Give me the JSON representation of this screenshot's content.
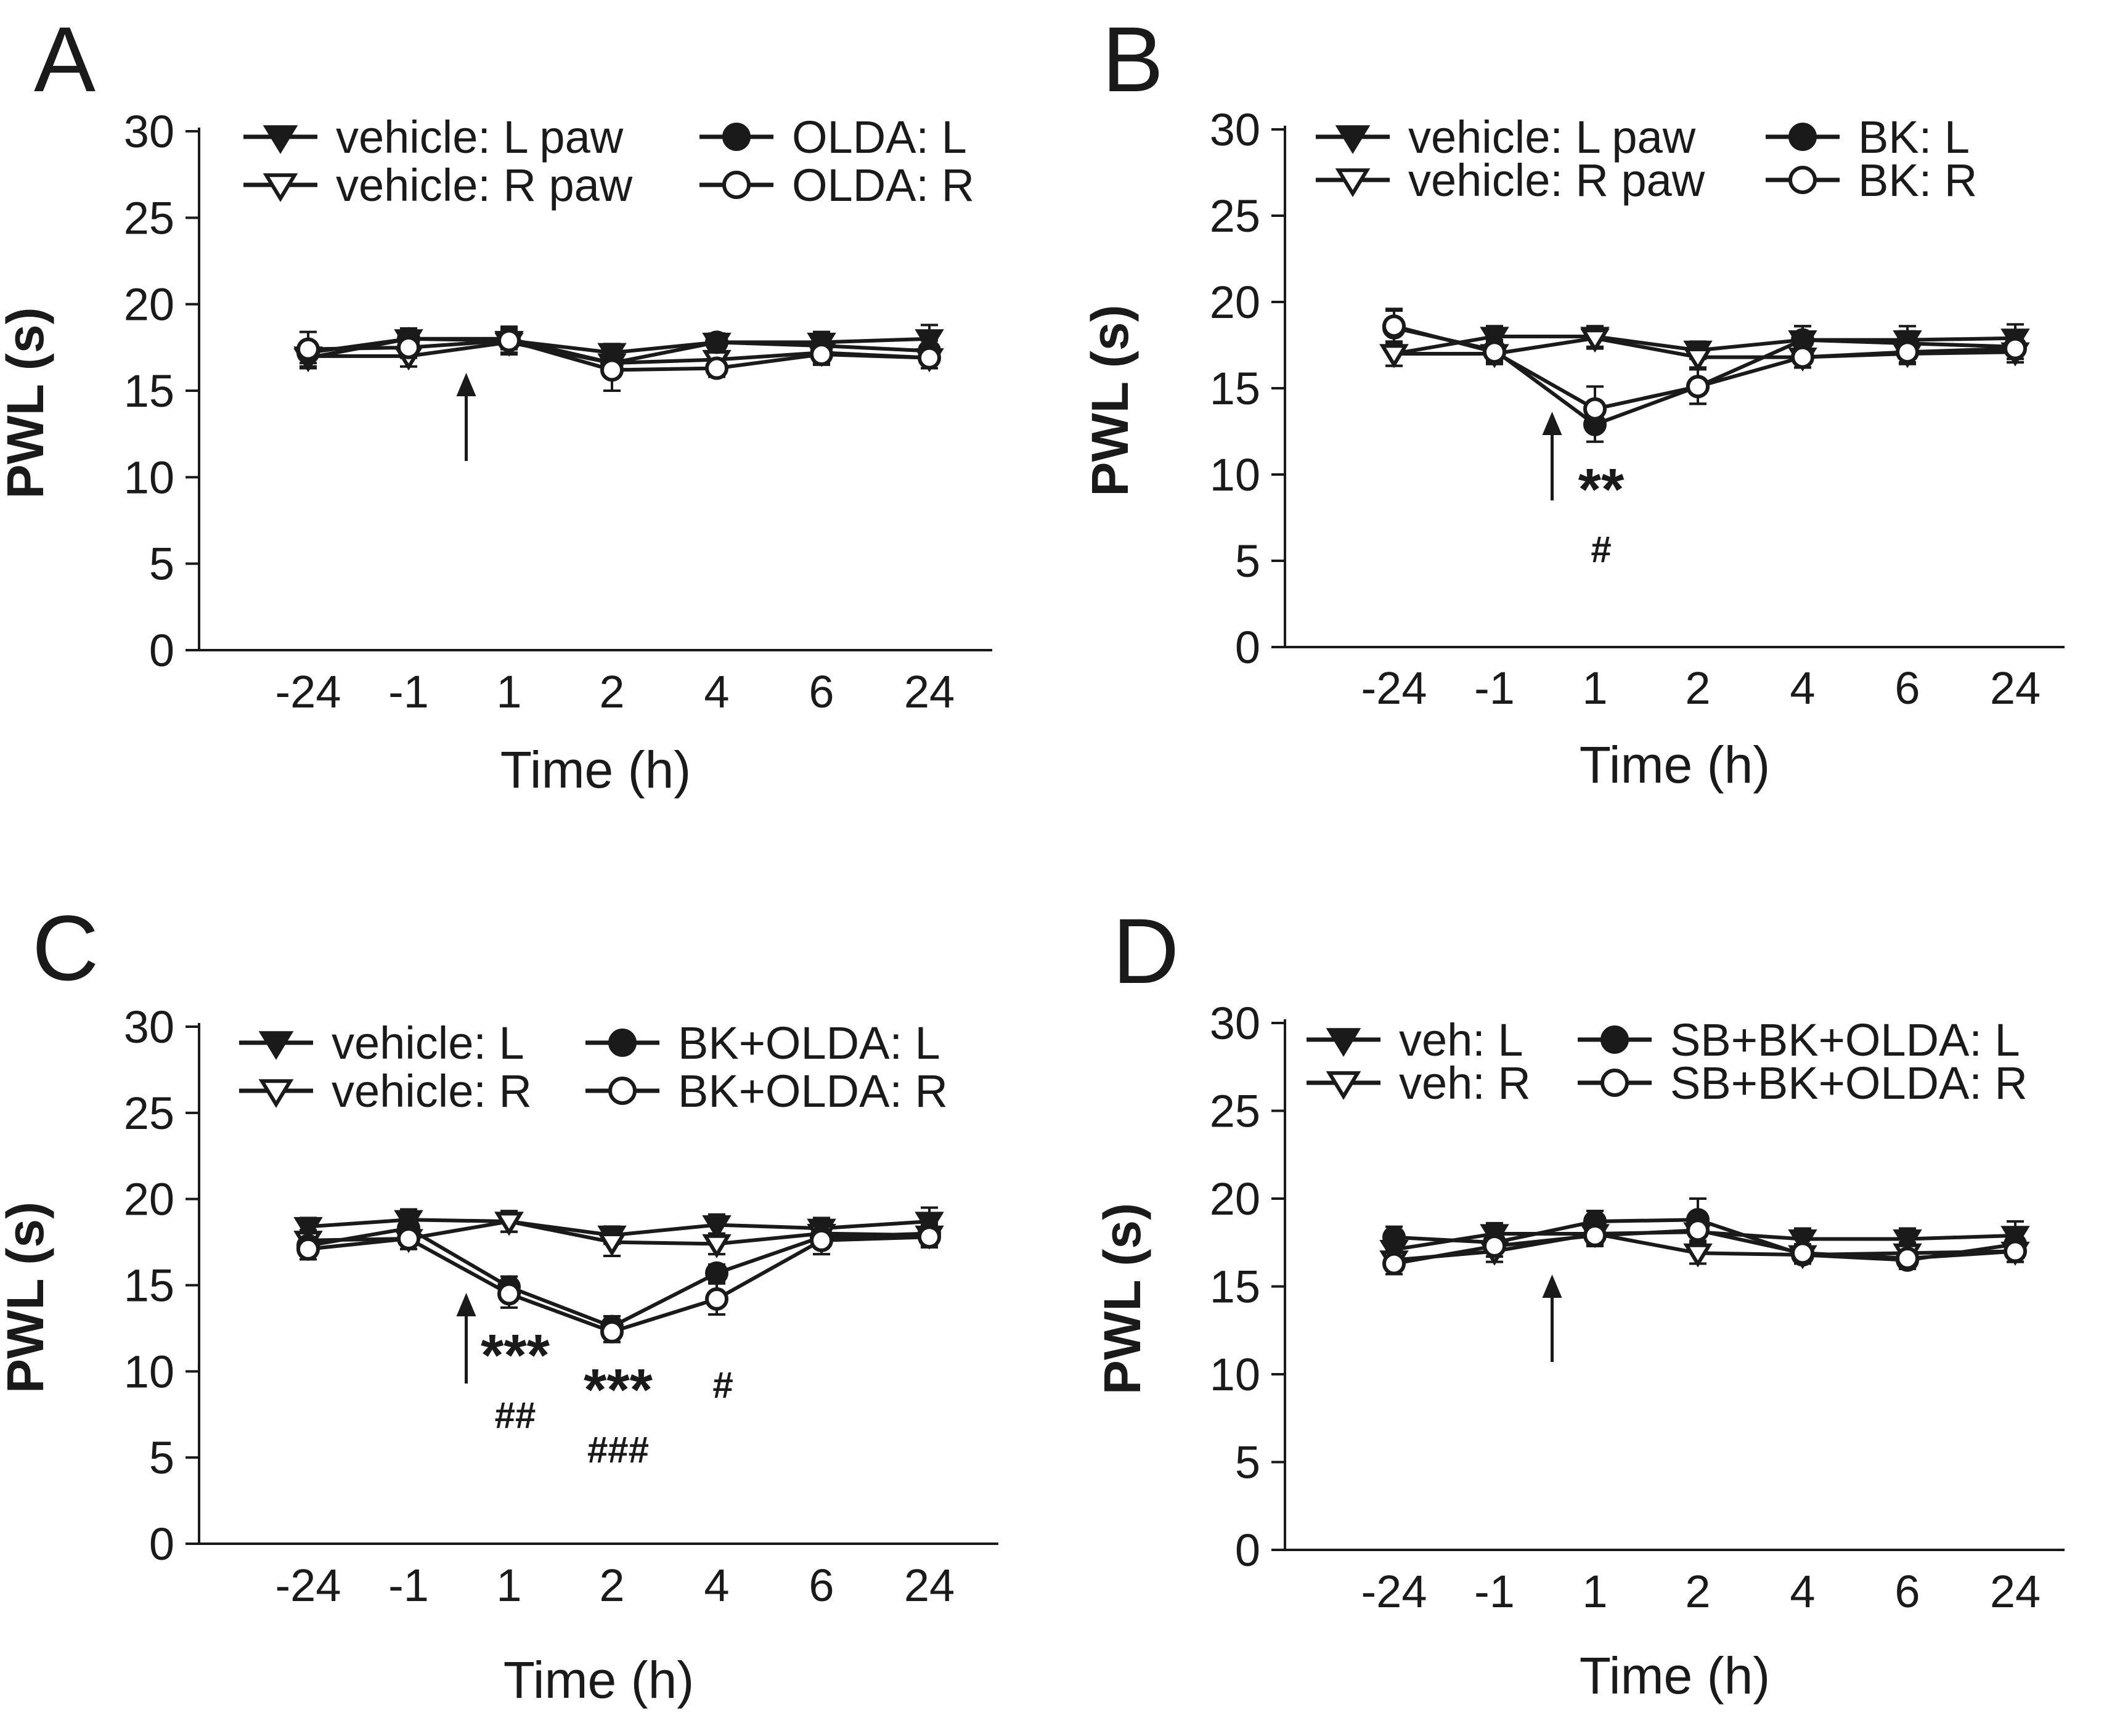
{
  "figure": {
    "colors": {
      "ink": "#1a1a1a",
      "fill_open": "#ffffff",
      "background": "#ffffff"
    }
  },
  "chart_data": [
    {
      "panel": "A",
      "type": "line",
      "ylabel": "PWL (s)",
      "xlabel": "Time (h)",
      "categories": [
        "-24",
        "-1",
        "1",
        "2",
        "4",
        "6",
        "24"
      ],
      "ylim": [
        0,
        30
      ],
      "yticks": [
        "0",
        "5",
        "10",
        "15",
        "20",
        "25",
        "30"
      ],
      "injection_arrow_between": [
        "-1",
        "1"
      ],
      "legend": {
        "left": [
          {
            "label": "vehicle: L paw",
            "marker": "triangle-down-filled"
          },
          {
            "label": "vehicle: R paw",
            "marker": "triangle-down-open"
          }
        ],
        "right": [
          {
            "label": "OLDA: L",
            "marker": "circle-filled"
          },
          {
            "label": "OLDA: R",
            "marker": "circle-open"
          }
        ]
      },
      "series": [
        {
          "name": "vehicle: L paw",
          "marker": "triangle-down-filled",
          "values": [
            16.9,
            18.0,
            17.9,
            17.2,
            17.8,
            17.8,
            18.0
          ],
          "errors": [
            0.6,
            0.6,
            0.7,
            0.5,
            0.5,
            0.6,
            0.8
          ]
        },
        {
          "name": "vehicle: R paw",
          "marker": "triangle-down-open",
          "values": [
            17.0,
            17.0,
            17.8,
            16.6,
            16.8,
            17.2,
            16.9
          ],
          "errors": [
            0.6,
            0.6,
            0.7,
            0.6,
            0.5,
            0.6,
            0.6
          ]
        },
        {
          "name": "OLDA: L",
          "marker": "circle-filled",
          "values": [
            17.2,
            18.0,
            18.0,
            16.6,
            17.8,
            17.6,
            17.3
          ],
          "errors": [
            0.6,
            0.6,
            0.6,
            0.6,
            0.5,
            0.6,
            0.6
          ]
        },
        {
          "name": "OLDA: R",
          "marker": "circle-open",
          "values": [
            17.4,
            17.5,
            17.9,
            16.2,
            16.3,
            17.1,
            16.9
          ],
          "errors": [
            1.0,
            0.6,
            0.8,
            1.2,
            0.5,
            0.6,
            0.6
          ]
        }
      ],
      "annotations": []
    },
    {
      "panel": "B",
      "type": "line",
      "ylabel": "PWL (s)",
      "xlabel": "Time (h)",
      "categories": [
        "-24",
        "-1",
        "1",
        "2",
        "4",
        "6",
        "24"
      ],
      "ylim": [
        0,
        30
      ],
      "yticks": [
        "0",
        "5",
        "10",
        "15",
        "20",
        "25",
        "30"
      ],
      "injection_arrow_between": [
        "-1",
        "1"
      ],
      "legend": {
        "left": [
          {
            "label": "vehicle: L paw",
            "marker": "triangle-down-filled"
          },
          {
            "label": "vehicle: R paw",
            "marker": "triangle-down-open"
          }
        ],
        "right": [
          {
            "label": "BK: L",
            "marker": "circle-filled"
          },
          {
            "label": "BK: R",
            "marker": "circle-open"
          }
        ]
      },
      "series": [
        {
          "name": "vehicle: L paw",
          "marker": "triangle-down-filled",
          "values": [
            17.0,
            18.0,
            18.0,
            17.2,
            17.8,
            17.8,
            17.9
          ],
          "errors": [
            0.7,
            0.6,
            0.6,
            0.5,
            0.8,
            0.8,
            0.8
          ]
        },
        {
          "name": "vehicle: R paw",
          "marker": "triangle-down-open",
          "values": [
            17.0,
            17.0,
            17.9,
            16.8,
            16.8,
            17.0,
            17.1
          ],
          "errors": [
            0.7,
            0.6,
            0.6,
            0.6,
            0.6,
            0.6,
            0.6
          ]
        },
        {
          "name": "BK: L",
          "marker": "circle-filled",
          "values": [
            18.5,
            17.2,
            12.9,
            15.1,
            17.8,
            17.6,
            17.4
          ],
          "errors": [
            1.0,
            0.6,
            1.0,
            1.0,
            0.8,
            0.7,
            0.7
          ]
        },
        {
          "name": "BK: R",
          "marker": "circle-open",
          "values": [
            18.6,
            17.1,
            13.8,
            15.1,
            16.8,
            17.1,
            17.3
          ],
          "errors": [
            1.0,
            0.6,
            1.3,
            1.0,
            0.6,
            0.6,
            0.6
          ]
        }
      ],
      "annotations": [
        {
          "at": "1",
          "text": "**",
          "weight": "bold",
          "tone": "gray",
          "level": 1
        },
        {
          "at": "1",
          "text": "#",
          "weight": "bold",
          "tone": "gray",
          "level": 2
        }
      ]
    },
    {
      "panel": "C",
      "type": "line",
      "ylabel": "PWL (s)",
      "xlabel": "Time (h)",
      "categories": [
        "-24",
        "-1",
        "1",
        "2",
        "4",
        "6",
        "24"
      ],
      "ylim": [
        0,
        30
      ],
      "yticks": [
        "0",
        "5",
        "10",
        "15",
        "20",
        "25",
        "30"
      ],
      "injection_arrow_between": [
        "-1",
        "1"
      ],
      "legend": {
        "left": [
          {
            "label": "vehicle: L",
            "marker": "triangle-down-filled"
          },
          {
            "label": "vehicle: R",
            "marker": "triangle-down-open"
          }
        ],
        "right": [
          {
            "label": "BK+OLDA: L",
            "marker": "circle-filled"
          },
          {
            "label": "BK+OLDA: R",
            "marker": "circle-open"
          }
        ]
      },
      "series": [
        {
          "name": "vehicle: L",
          "marker": "triangle-down-filled",
          "values": [
            18.4,
            18.8,
            18.7,
            17.9,
            18.5,
            18.3,
            18.7
          ],
          "errors": [
            0.5,
            0.6,
            0.6,
            0.5,
            0.6,
            0.6,
            0.8
          ]
        },
        {
          "name": "vehicle: R",
          "marker": "triangle-down-open",
          "values": [
            17.6,
            17.7,
            18.7,
            17.5,
            17.4,
            18.0,
            17.9
          ],
          "errors": [
            0.6,
            0.6,
            0.6,
            0.8,
            0.6,
            0.6,
            0.6
          ]
        },
        {
          "name": "BK+OLDA: L",
          "marker": "circle-filled",
          "values": [
            17.3,
            18.3,
            14.9,
            12.6,
            15.7,
            17.8,
            18.0
          ],
          "errors": [
            0.6,
            0.6,
            0.6,
            0.6,
            0.5,
            0.6,
            0.6
          ]
        },
        {
          "name": "BK+OLDA: R",
          "marker": "circle-open",
          "values": [
            17.1,
            17.7,
            14.5,
            12.3,
            14.2,
            17.6,
            17.8
          ],
          "errors": [
            0.6,
            0.6,
            0.8,
            0.6,
            0.9,
            0.8,
            0.6
          ]
        }
      ],
      "annotations": [
        {
          "at": "1",
          "text": "***",
          "weight": "bold",
          "tone": "gray",
          "level": 1
        },
        {
          "at": "1",
          "text": "##",
          "weight": "bold",
          "tone": "gray",
          "level": 2
        },
        {
          "at": "2",
          "text": "***",
          "weight": "bold",
          "tone": "black",
          "level": 1
        },
        {
          "at": "2",
          "text": "###",
          "weight": "bold",
          "tone": "black",
          "level": 2
        },
        {
          "at": "4",
          "text": "#",
          "weight": "bold",
          "tone": "black",
          "level": 2
        }
      ]
    },
    {
      "panel": "D",
      "type": "line",
      "ylabel": "PWL (s)",
      "xlabel": "Time (h)",
      "categories": [
        "-24",
        "-1",
        "1",
        "2",
        "4",
        "6",
        "24"
      ],
      "ylim": [
        0,
        30
      ],
      "yticks": [
        "0",
        "5",
        "10",
        "15",
        "20",
        "25",
        "30"
      ],
      "injection_arrow_between": [
        "-1",
        "1"
      ],
      "legend": {
        "left": [
          {
            "label": "veh: L",
            "marker": "triangle-down-filled"
          },
          {
            "label": "veh: R",
            "marker": "triangle-down-open"
          }
        ],
        "right": [
          {
            "label": "SB+BK+OLDA: L",
            "marker": "circle-filled"
          },
          {
            "label": "SB+BK+OLDA: R",
            "marker": "circle-open"
          }
        ]
      },
      "series": [
        {
          "name": "veh: L",
          "marker": "triangle-down-filled",
          "values": [
            17.1,
            18.0,
            18.0,
            18.1,
            17.7,
            17.7,
            17.9
          ],
          "errors": [
            0.6,
            0.6,
            0.6,
            0.8,
            0.6,
            0.6,
            0.8
          ]
        },
        {
          "name": "veh: R",
          "marker": "triangle-down-open",
          "values": [
            16.5,
            17.0,
            18.0,
            16.9,
            16.8,
            16.9,
            17.0
          ],
          "errors": [
            0.6,
            0.6,
            0.6,
            0.6,
            0.5,
            0.6,
            0.6
          ]
        },
        {
          "name": "SB+BK+OLDA: L",
          "marker": "circle-filled",
          "values": [
            17.8,
            17.5,
            18.7,
            18.8,
            16.8,
            16.5,
            17.4
          ],
          "errors": [
            0.6,
            0.6,
            0.6,
            1.2,
            0.5,
            0.5,
            0.6
          ]
        },
        {
          "name": "SB+BK+OLDA: R",
          "marker": "circle-open",
          "values": [
            16.3,
            17.3,
            17.9,
            18.2,
            16.9,
            16.6,
            17.0
          ],
          "errors": [
            0.6,
            0.6,
            0.6,
            0.8,
            0.5,
            0.5,
            0.6
          ]
        }
      ],
      "annotations": []
    }
  ]
}
